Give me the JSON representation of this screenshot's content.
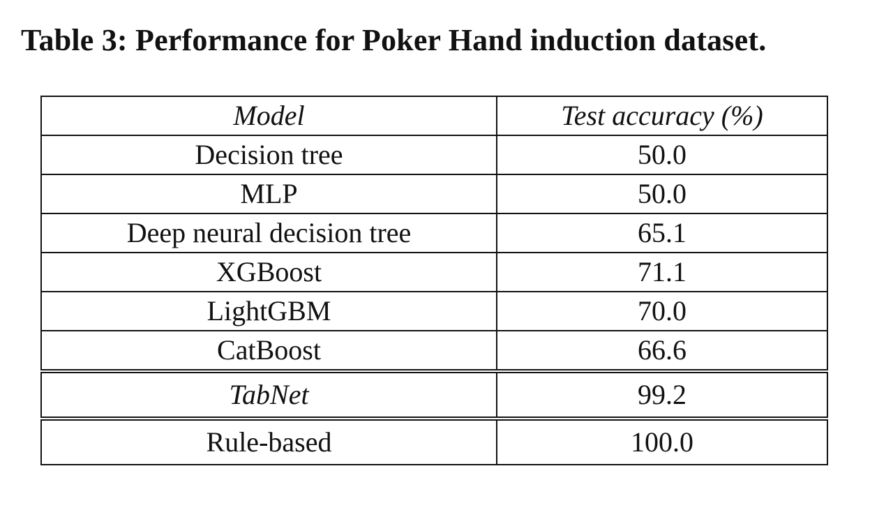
{
  "caption": {
    "label": "Table 3:",
    "text": "Performance for Poker Hand induction dataset."
  },
  "table": {
    "headers": [
      "Model",
      "Test accuracy (%)"
    ],
    "rows": [
      {
        "model": "Decision tree",
        "accuracy": "50.0"
      },
      {
        "model": "MLP",
        "accuracy": "50.0"
      },
      {
        "model": "Deep neural decision tree",
        "accuracy": "65.1"
      },
      {
        "model": "XGBoost",
        "accuracy": "71.1"
      },
      {
        "model": "LightGBM",
        "accuracy": "70.0"
      },
      {
        "model": "CatBoost",
        "accuracy": "66.6"
      },
      {
        "model": "TabNet",
        "accuracy": "99.2"
      },
      {
        "model": "Rule-based",
        "accuracy": "100.0"
      }
    ]
  }
}
